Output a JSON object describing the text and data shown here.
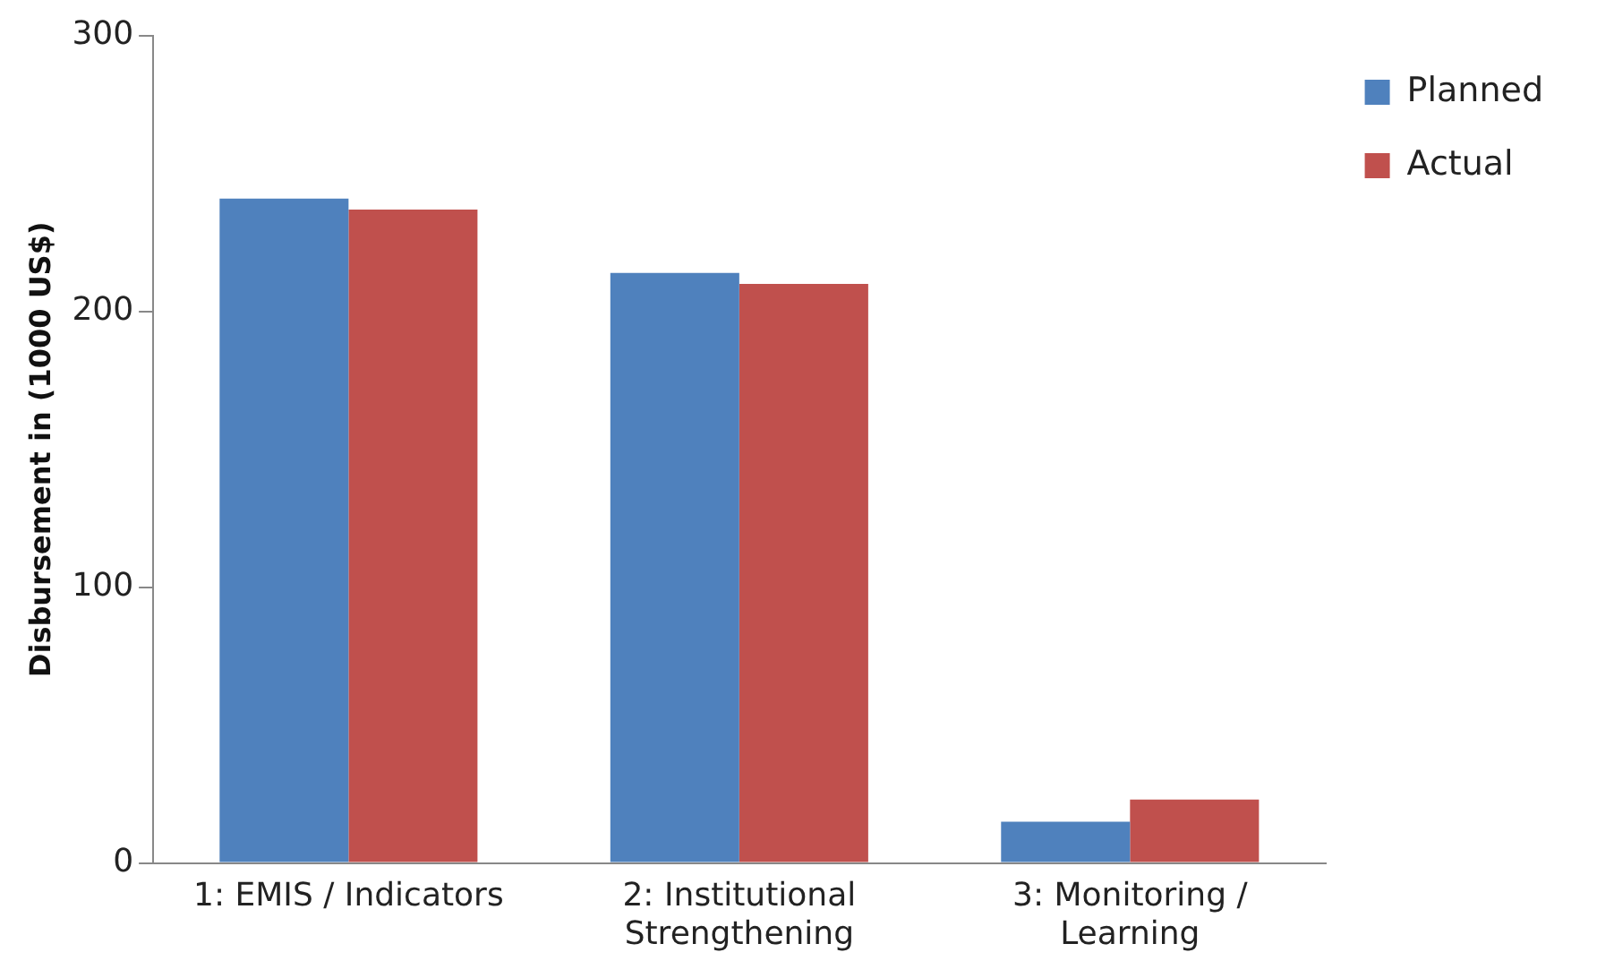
{
  "chart_data": {
    "type": "bar",
    "ylabel": "Disbursement in (1000 US$)",
    "categories": [
      "1: EMIS / Indicators",
      "2: Institutional Strengthening",
      "3: Monitoring / Learning"
    ],
    "series": [
      {
        "name": "Planned",
        "color": "#4f81bd",
        "values": [
          241,
          214,
          15
        ]
      },
      {
        "name": "Actual",
        "color": "#c0504d",
        "values": [
          237,
          210,
          23
        ]
      }
    ],
    "ylim": [
      0,
      300
    ],
    "yticks": [
      0,
      100,
      200,
      300
    ],
    "grid": false,
    "legend": "top right"
  }
}
